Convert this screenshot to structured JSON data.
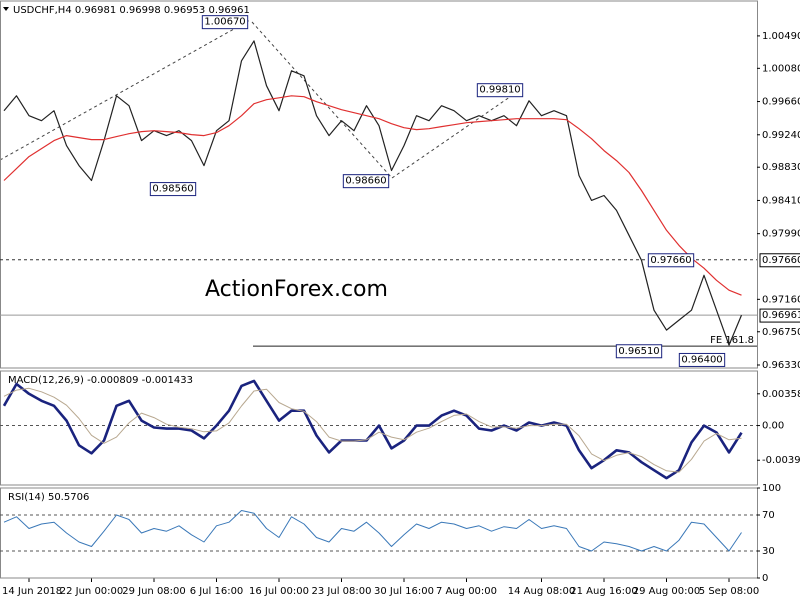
{
  "chart_data": [
    {
      "type": "line",
      "title": "USDCHF,H4 0.96981 0.96998 0.96953 0.96961",
      "watermark": "ActionForex.com",
      "x": [
        null,
        null,
        "14 Jun 2018",
        null,
        null,
        null,
        null,
        "22 Jun 00:00",
        null,
        null,
        null,
        null,
        "29 Jun 08:00",
        null,
        null,
        null,
        null,
        "6 Jul 16:00",
        null,
        null,
        null,
        null,
        "16 Jul 00:00",
        null,
        null,
        null,
        null,
        "23 Jul 08:00",
        null,
        null,
        null,
        null,
        "30 Jul 16:00",
        null,
        null,
        null,
        null,
        "7 Aug 00:00",
        null,
        null,
        null,
        null,
        null,
        "14 Aug 08:00",
        null,
        null,
        null,
        null,
        "21 Aug 16:00",
        null,
        null,
        null,
        null,
        "29 Aug 00:00",
        null,
        null,
        null,
        null,
        "5 Sep 08:00",
        null
      ],
      "series": [
        {
          "color": "#222222",
          "width": 1.2,
          "values": [
            0.99544,
            0.99733,
            0.99481,
            0.99418,
            0.99544,
            0.99103,
            0.98851,
            0.98662,
            0.99166,
            0.99733,
            0.99607,
            0.99166,
            0.99292,
            0.99229,
            0.99292,
            0.99166,
            0.98851,
            0.99292,
            0.99418,
            1.00175,
            1.00427,
            0.9986,
            0.99544,
            1.00049,
            0.99986,
            0.99481,
            0.99229,
            0.99418,
            0.99292,
            0.99607,
            0.99355,
            0.98788,
            0.99103,
            0.99481,
            0.99418,
            0.99607,
            0.99544,
            0.99418,
            0.99481,
            0.99418,
            0.99481,
            0.99355,
            0.9967,
            0.99481,
            0.99544,
            0.99481,
            0.98725,
            0.9841,
            0.98473,
            0.98284,
            0.97969,
            0.97653,
            0.97023,
            0.96771,
            0.96897,
            0.97023,
            0.97464,
            0.97023,
            0.96582,
            0.96961
          ]
        },
        {
          "color": "#e03030",
          "width": 1.2,
          "values": [
            0.98662,
            0.98813,
            0.98964,
            0.99065,
            0.99166,
            0.99229,
            0.99204,
            0.99179,
            0.99179,
            0.99217,
            0.99254,
            0.9928,
            0.99292,
            0.9928,
            0.99267,
            0.99242,
            0.99229,
            0.99267,
            0.99355,
            0.99481,
            0.99633,
            0.99683,
            0.99708,
            0.99733,
            0.99721,
            0.99658,
            0.99607,
            0.99557,
            0.99519,
            0.99481,
            0.99443,
            0.9938,
            0.9933,
            0.99305,
            0.99317,
            0.99343,
            0.99368,
            0.99393,
            0.99406,
            0.99418,
            0.99431,
            0.99443,
            0.99443,
            0.99443,
            0.99443,
            0.99431,
            0.99317,
            0.99191,
            0.9904,
            0.98914,
            0.98763,
            0.98536,
            0.98284,
            0.98032,
            0.97842,
            0.97679,
            0.97553,
            0.97401,
            0.97275,
            0.97212
          ]
        }
      ],
      "ylim": [
        0.96292,
        1.00931
      ],
      "yticks": [
        {
          "value": 1.0049,
          "label": "1.00490"
        },
        {
          "value": 1.0008,
          "label": "1.00080"
        },
        {
          "value": 0.9966,
          "label": "0.99660"
        },
        {
          "value": 0.9924,
          "label": "0.99240"
        },
        {
          "value": 0.9883,
          "label": "0.98830"
        },
        {
          "value": 0.9841,
          "label": "0.98410"
        },
        {
          "value": 0.9799,
          "label": "0.97990"
        },
        {
          "value": 0.9716,
          "label": "0.97160"
        },
        {
          "value": 0.9675,
          "label": "0.96750"
        },
        {
          "value": 0.9633,
          "label": "0.96330"
        }
      ],
      "level": {
        "value": 0.9766,
        "label": "0.97660"
      },
      "current_price": {
        "value": 0.96961,
        "label": "0.96961"
      },
      "fe_level": {
        "value": 0.96569,
        "label": "FE 161.8"
      },
      "annotations": [
        {
          "value": 1.0067,
          "label": "1.00670"
        },
        {
          "value": 0.9981,
          "label": "0.99810"
        },
        {
          "value": 0.9856,
          "label": "0.98560"
        },
        {
          "value": 0.9866,
          "label": "0.98660"
        },
        {
          "value": 0.9766,
          "label": "0.97660"
        },
        {
          "value": 0.9651,
          "label": "0.96510"
        },
        {
          "value": 0.964,
          "label": "0.96400"
        }
      ]
    },
    {
      "type": "line",
      "title": "MACD(12,26,9) -0.000809 -0.001433",
      "series": [
        {
          "color": "#1a237e",
          "width": 2.6,
          "values": [
            0.00223,
            0.00469,
            0.00358,
            0.00279,
            0.00223,
            0.00056,
            -0.00223,
            -0.00313,
            -0.00168,
            0.00223,
            0.00279,
            0.00056,
            -0.00022,
            -0.00034,
            -0.00034,
            -0.00056,
            -0.00145,
            0,
            0.00168,
            0.00447,
            0.00503,
            0.00279,
            0.00056,
            0.00168,
            0.00168,
            -0.00112,
            -0.00302,
            -0.00168,
            -0.00168,
            -0.00168,
            0,
            -0.00257,
            -0.00168,
            0,
            0,
            0.00112,
            0.00168,
            0.00112,
            -0.00034,
            -0.00056,
            0,
            -0.00056,
            0.00034,
            0,
            0.00034,
            0,
            -0.00279,
            -0.0048,
            -0.00391,
            -0.00279,
            -0.00302,
            -0.00413,
            -0.00503,
            -0.00592,
            -0.00503,
            -0.0019,
            0,
            -0.00078,
            -0.00302,
            -0.000809
          ]
        },
        {
          "color": "#b8a890",
          "width": 1,
          "values": [
            0.0033,
            0.004,
            0.0042,
            0.0038,
            0.0032,
            0.0023,
            0.0008,
            -0.0011,
            -0.002,
            -0.0013,
            0.0003,
            0.0014,
            0.0009,
            0.00015,
            -0.0002,
            -0.00035,
            -0.0007,
            -0.0006,
            0.0003,
            0.0022,
            0.0039,
            0.0041,
            0.0026,
            0.0019,
            0.0016,
            0.00045,
            -0.0013,
            -0.00175,
            -0.00175,
            -0.0016,
            -0.00075,
            -0.0013,
            -0.0016,
            -0.00075,
            -0.0003,
            0.00045,
            0.00115,
            0.0013,
            0.00045,
            -0.00015,
            -0.00015,
            -0.0003,
            0,
            0,
            0.00015,
            0.00015,
            -0.00115,
            -0.0032,
            -0.00395,
            -0.00335,
            -0.00305,
            -0.0035,
            -0.0044,
            -0.0051,
            -0.00525,
            -0.0038,
            -0.00175,
            -0.0009,
            -0.0016,
            -0.001433
          ]
        }
      ],
      "ylim": [
        -0.0067,
        0.00615
      ],
      "yticks": [
        0.00358,
        {
          "value": 0,
          "label": "0.00"
        },
        -0.003908
      ],
      "zero_line": true
    },
    {
      "type": "line",
      "title": "RSI(14) 50.5706",
      "series": [
        {
          "color": "#3a78b8",
          "width": 1,
          "values": [
            62,
            68,
            55,
            60,
            62,
            50,
            40,
            35,
            52,
            70,
            65,
            50,
            55,
            52,
            58,
            48,
            40,
            58,
            62,
            75,
            72,
            55,
            45,
            68,
            60,
            45,
            40,
            55,
            52,
            62,
            50,
            35,
            48,
            60,
            55,
            62,
            60,
            55,
            58,
            52,
            57,
            55,
            65,
            55,
            58,
            55,
            35,
            30,
            40,
            38,
            35,
            30,
            35,
            30,
            42,
            62,
            60,
            45,
            30,
            50.5706
          ]
        }
      ],
      "ylim": [
        0,
        100
      ],
      "yticks": [
        100,
        70,
        30,
        0
      ],
      "grid": "inner"
    }
  ]
}
